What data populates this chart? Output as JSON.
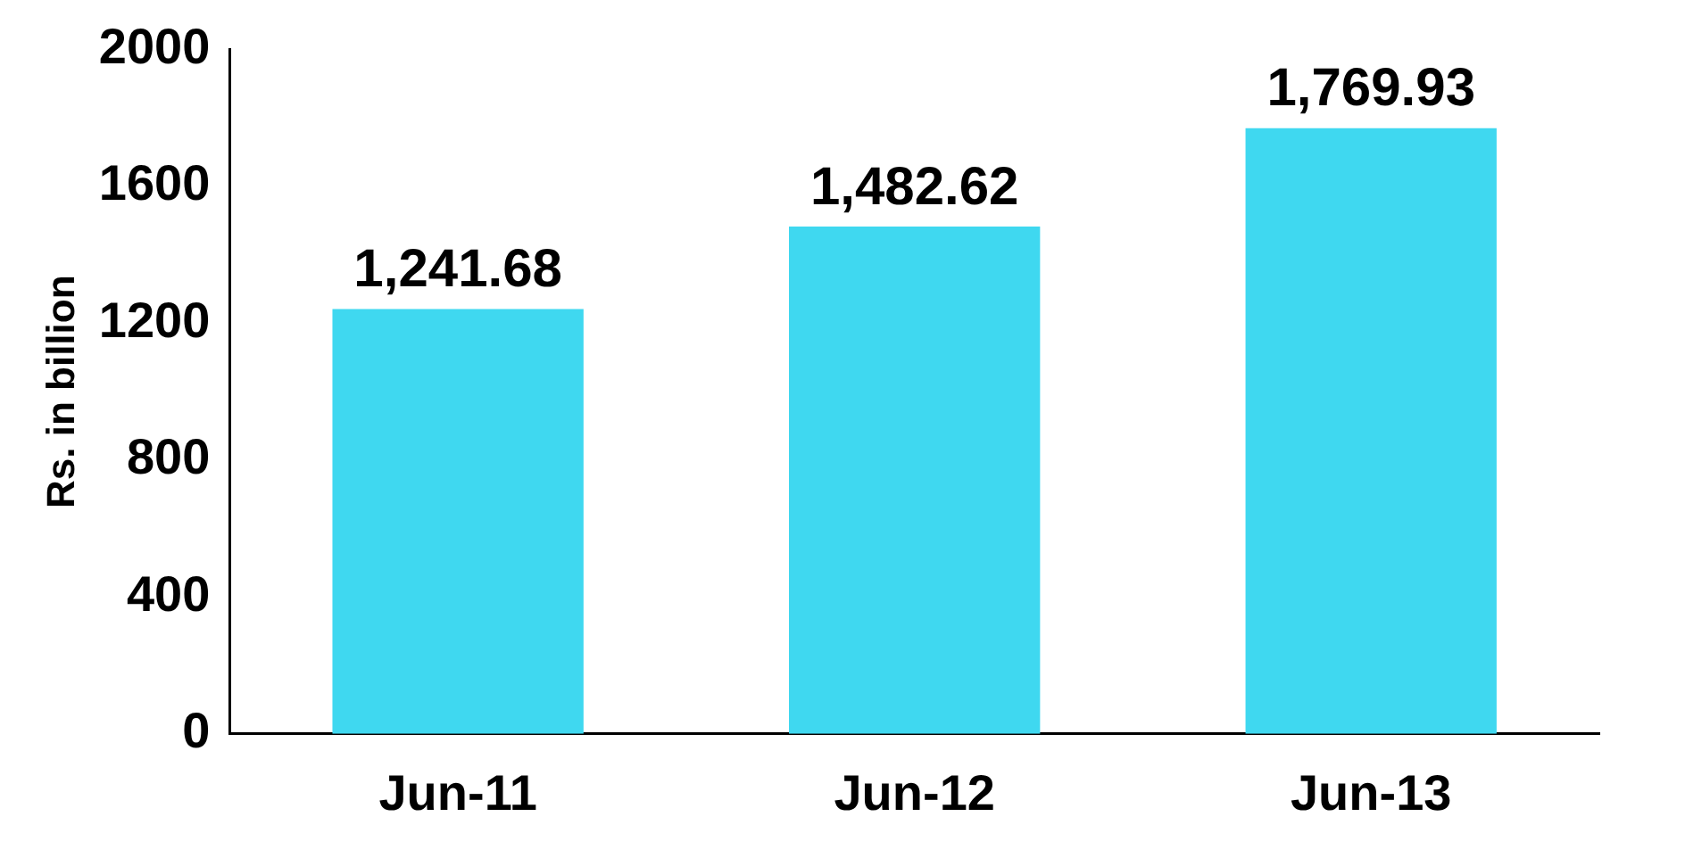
{
  "chart_data": {
    "type": "bar",
    "ylabel": "Rs. in billion",
    "categories": [
      "Jun-11",
      "Jun-12",
      "Jun-13"
    ],
    "values": [
      1241.68,
      1482.62,
      1769.93
    ],
    "value_labels": [
      "1,241.68",
      "1,482.62",
      "1,769.93"
    ],
    "color": "#3fd8f0",
    "ylim": [
      0,
      2000
    ],
    "yticks": [
      0,
      400,
      800,
      1200,
      1600,
      2000
    ],
    "grid": false,
    "legend": false
  }
}
